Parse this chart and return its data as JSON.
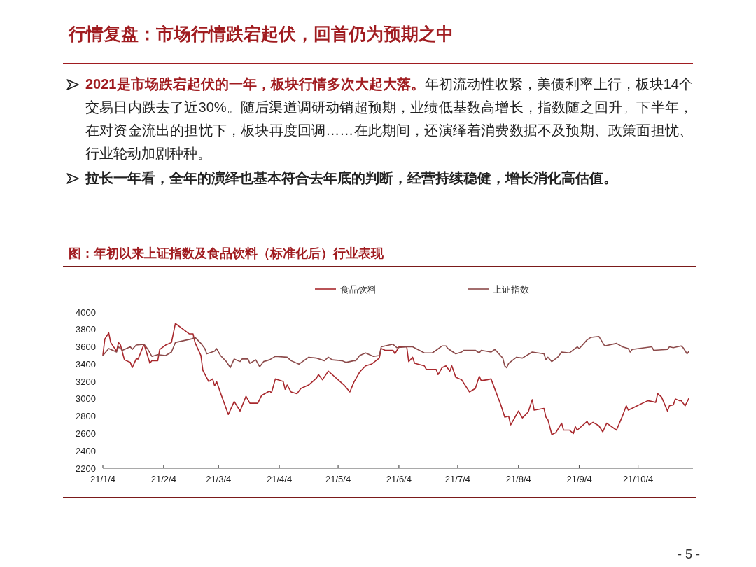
{
  "chart_data": {
    "type": "line",
    "title": "行情复盘：市场行情跌宕起伏，回首仍为预期之中",
    "subtitle": "图：年初以来上证指数及食品饮料（标准化后）行业表现",
    "annotations": [
      "2021是市场跌宕起伏的一年，板块行情多次大起大落。",
      "年初流动性收紧，美债利率上行，板块14个交易日内跌去了近30%。随后渠道调研动销超预期，业绩低基数高增长，指数随之回升。下半年，在对资金流出的担忧下，板块再度回调……在此期间，还演绎着消费数据不及预期、政策面担忧、行业轮动加剧种种。",
      "拉长一年看，全年的演绎也基本符合去年底的判断，经营持续稳健，增长消化高估值。",
      "- 5 -"
    ],
    "xlim": [
      "2021-01-04",
      "2021-11-01"
    ],
    "xticks": [
      {
        "value": "2021-01-04",
        "label": "21/1/4"
      },
      {
        "value": "2021-02-04",
        "label": "21/2/4"
      },
      {
        "value": "2021-03-04",
        "label": "21/3/4"
      },
      {
        "value": "2021-04-04",
        "label": "21/4/4"
      },
      {
        "value": "2021-05-04",
        "label": "21/5/4"
      },
      {
        "value": "2021-06-04",
        "label": "21/6/4"
      },
      {
        "value": "2021-07-04",
        "label": "21/7/4"
      },
      {
        "value": "2021-08-04",
        "label": "21/8/4"
      },
      {
        "value": "2021-09-04",
        "label": "21/9/4"
      },
      {
        "value": "2021-10-04",
        "label": "21/10/4"
      }
    ],
    "ylim": [
      2200,
      4000
    ],
    "yticks": [
      2200,
      2400,
      2600,
      2800,
      3000,
      3200,
      3400,
      3600,
      3800,
      4000
    ],
    "grid": false,
    "legend": "top",
    "series": [
      {
        "name": "食品饮料",
        "color": "#a8282d",
        "x": [
          "2021-01-04",
          "2021-01-05",
          "2021-01-07",
          "2021-01-08",
          "2021-01-11",
          "2021-01-12",
          "2021-01-13",
          "2021-01-15",
          "2021-01-18",
          "2021-01-19",
          "2021-01-21",
          "2021-01-22",
          "2021-01-25",
          "2021-01-28",
          "2021-01-29",
          "2021-02-01",
          "2021-02-02",
          "2021-02-05",
          "2021-02-08",
          "2021-02-10",
          "2021-02-17",
          "2021-02-19",
          "2021-02-20",
          "2021-02-23",
          "2021-02-24",
          "2021-02-27",
          "2021-03-01",
          "2021-03-02",
          "2021-03-03",
          "2021-03-05",
          "2021-03-09",
          "2021-03-12",
          "2021-03-15",
          "2021-03-18",
          "2021-03-20",
          "2021-03-24",
          "2021-03-26",
          "2021-03-30",
          "2021-03-31",
          "2021-04-02",
          "2021-04-06",
          "2021-04-07",
          "2021-04-08",
          "2021-04-10",
          "2021-04-13",
          "2021-04-15",
          "2021-04-19",
          "2021-04-23",
          "2021-04-24",
          "2021-04-26",
          "2021-04-29",
          "2021-05-07",
          "2021-05-10",
          "2021-05-12",
          "2021-05-15",
          "2021-05-18",
          "2021-05-21",
          "2021-05-25",
          "2021-05-26",
          "2021-05-28",
          "2021-06-01",
          "2021-06-02",
          "2021-06-04",
          "2021-06-08",
          "2021-06-09",
          "2021-06-11",
          "2021-06-12",
          "2021-06-17",
          "2021-06-18",
          "2021-06-23",
          "2021-06-24",
          "2021-06-26",
          "2021-06-28",
          "2021-06-30",
          "2021-07-01",
          "2021-07-03",
          "2021-07-06",
          "2021-07-10",
          "2021-07-13",
          "2021-07-14",
          "2021-07-15",
          "2021-07-16",
          "2021-07-19",
          "2021-07-21",
          "2021-07-26",
          "2021-07-28",
          "2021-07-30",
          "2021-07-31",
          "2021-08-04",
          "2021-08-06",
          "2021-08-09",
          "2021-08-11",
          "2021-08-12",
          "2021-08-17",
          "2021-08-18",
          "2021-08-19",
          "2021-08-21",
          "2021-08-23",
          "2021-08-26",
          "2021-08-27",
          "2021-08-30",
          "2021-09-01",
          "2021-09-02",
          "2021-09-03",
          "2021-09-08",
          "2021-09-09",
          "2021-09-11",
          "2021-09-14",
          "2021-09-16",
          "2021-09-18",
          "2021-09-23",
          "2021-09-26",
          "2021-09-28",
          "2021-09-29",
          "2021-10-09",
          "2021-10-13",
          "2021-10-14",
          "2021-10-16",
          "2021-10-19",
          "2021-10-20",
          "2021-10-22",
          "2021-10-23",
          "2021-10-25",
          "2021-10-26",
          "2021-10-28",
          "2021-10-30"
        ],
        "values": [
          3500,
          3690,
          3760,
          3650,
          3550,
          3650,
          3620,
          3450,
          3420,
          3360,
          3460,
          3460,
          3630,
          3410,
          3440,
          3440,
          3570,
          3620,
          3650,
          3870,
          3750,
          3750,
          3650,
          3500,
          3330,
          3200,
          3230,
          3150,
          3200,
          3070,
          2820,
          2970,
          2860,
          3030,
          2950,
          2950,
          3040,
          3090,
          3070,
          3230,
          3200,
          3110,
          3160,
          3080,
          3060,
          3120,
          3160,
          3240,
          3280,
          3220,
          3320,
          3160,
          3080,
          3190,
          3310,
          3380,
          3400,
          3470,
          3580,
          3560,
          3560,
          3520,
          3600,
          3600,
          3430,
          3480,
          3410,
          3380,
          3340,
          3340,
          3280,
          3360,
          3380,
          3320,
          3380,
          3250,
          3220,
          3080,
          3120,
          3190,
          3260,
          3210,
          3220,
          3230,
          2930,
          2790,
          2800,
          2700,
          2860,
          2780,
          2850,
          2990,
          2870,
          2890,
          2790,
          2760,
          2590,
          2610,
          2720,
          2640,
          2640,
          2600,
          2680,
          2640,
          2740,
          2700,
          2730,
          2690,
          2620,
          2720,
          2640,
          2800,
          2920,
          2870,
          2980,
          2960,
          3060,
          3020,
          2860,
          2920,
          2930,
          3000,
          2980,
          2980,
          2920,
          3010
        ]
      },
      {
        "name": "上证指数",
        "color": "#8c4a4a",
        "x": [
          "2021-01-04",
          "2021-01-07",
          "2021-01-11",
          "2021-01-12",
          "2021-01-14",
          "2021-01-18",
          "2021-01-19",
          "2021-01-21",
          "2021-01-25",
          "2021-01-27",
          "2021-01-29",
          "2021-02-01",
          "2021-02-05",
          "2021-02-08",
          "2021-02-10",
          "2021-02-18",
          "2021-02-20",
          "2021-02-23",
          "2021-02-25",
          "2021-02-26",
          "2021-03-02",
          "2021-03-03",
          "2021-03-05",
          "2021-03-08",
          "2021-03-10",
          "2021-03-12",
          "2021-03-15",
          "2021-03-16",
          "2021-03-19",
          "2021-03-20",
          "2021-03-23",
          "2021-03-25",
          "2021-03-27",
          "2021-03-30",
          "2021-04-02",
          "2021-04-08",
          "2021-04-10",
          "2021-04-14",
          "2021-04-19",
          "2021-04-23",
          "2021-04-27",
          "2021-04-29",
          "2021-05-01",
          "2021-05-06",
          "2021-05-08",
          "2021-05-12",
          "2021-05-13",
          "2021-05-15",
          "2021-05-18",
          "2021-05-22",
          "2021-05-25",
          "2021-05-26",
          "2021-05-28",
          "2021-06-01",
          "2021-06-03",
          "2021-06-08",
          "2021-06-11",
          "2021-06-17",
          "2021-06-21",
          "2021-06-23",
          "2021-06-26",
          "2021-06-28",
          "2021-06-29",
          "2021-07-03",
          "2021-07-06",
          "2021-07-07",
          "2021-07-13",
          "2021-07-15",
          "2021-07-16",
          "2021-07-21",
          "2021-07-23",
          "2021-07-25",
          "2021-07-27",
          "2021-07-28",
          "2021-07-29",
          "2021-07-30",
          "2021-08-03",
          "2021-08-06",
          "2021-08-11",
          "2021-08-17",
          "2021-08-18",
          "2021-08-19",
          "2021-08-21",
          "2021-08-24",
          "2021-08-26",
          "2021-08-30",
          "2021-09-03",
          "2021-09-04",
          "2021-09-08",
          "2021-09-10",
          "2021-09-14",
          "2021-09-17",
          "2021-09-23",
          "2021-09-26",
          "2021-09-29",
          "2021-09-30",
          "2021-10-01",
          "2021-10-11",
          "2021-10-12",
          "2021-10-19",
          "2021-10-20",
          "2021-10-22",
          "2021-10-26",
          "2021-10-27",
          "2021-10-29",
          "2021-10-30"
        ],
        "values": [
          3500,
          3580,
          3540,
          3600,
          3560,
          3600,
          3570,
          3620,
          3630,
          3570,
          3490,
          3510,
          3500,
          3540,
          3650,
          3690,
          3710,
          3640,
          3580,
          3520,
          3550,
          3580,
          3500,
          3430,
          3360,
          3460,
          3430,
          3460,
          3460,
          3410,
          3450,
          3370,
          3430,
          3450,
          3490,
          3480,
          3440,
          3400,
          3480,
          3470,
          3440,
          3480,
          3450,
          3440,
          3420,
          3440,
          3440,
          3500,
          3530,
          3490,
          3500,
          3600,
          3610,
          3630,
          3590,
          3600,
          3600,
          3530,
          3530,
          3560,
          3610,
          3610,
          3580,
          3520,
          3540,
          3560,
          3560,
          3530,
          3560,
          3540,
          3570,
          3520,
          3470,
          3380,
          3360,
          3410,
          3480,
          3470,
          3540,
          3520,
          3450,
          3480,
          3430,
          3480,
          3540,
          3530,
          3600,
          3580,
          3680,
          3710,
          3720,
          3610,
          3640,
          3600,
          3580,
          3540,
          3570,
          3600,
          3560,
          3570,
          3600,
          3590,
          3610,
          3590,
          3520,
          3550
        ]
      }
    ]
  }
}
